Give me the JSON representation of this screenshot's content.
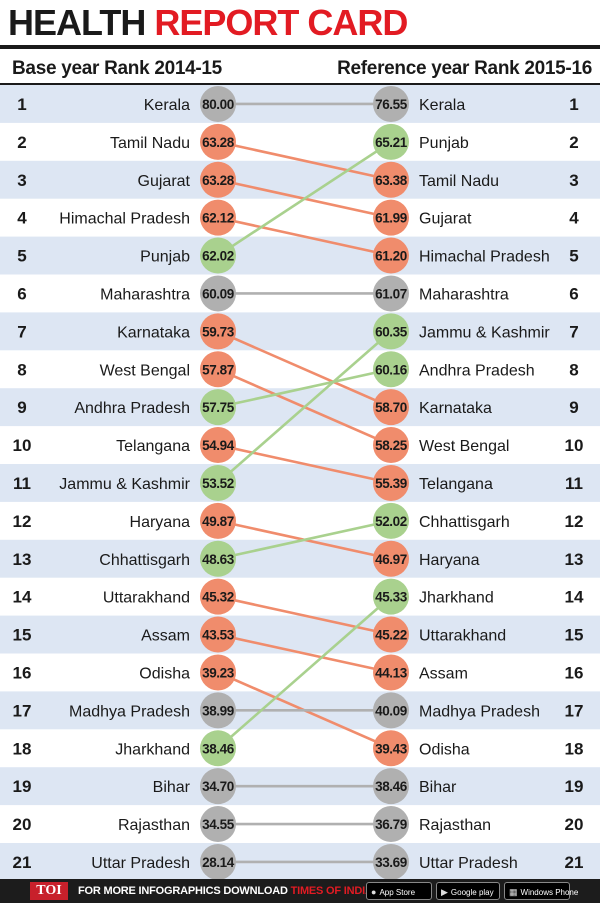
{
  "header": {
    "title_part1": "HEALTH",
    "title_part2": "REPORT CARD",
    "left_heading": "Base year Rank 2014-15",
    "right_heading": "Reference year Rank 2015-16"
  },
  "chart_data": {
    "type": "slope",
    "title": "HEALTH REPORT CARD",
    "left_label": "Base year Rank 2014-15",
    "right_label": "Reference year Rank 2015-16",
    "ranks": [
      1,
      2,
      3,
      4,
      5,
      6,
      7,
      8,
      9,
      10,
      11,
      12,
      13,
      14,
      15,
      16,
      17,
      18,
      19,
      20,
      21
    ],
    "base": [
      {
        "state": "Kerala",
        "score": "80.00"
      },
      {
        "state": "Tamil Nadu",
        "score": "63.28"
      },
      {
        "state": "Gujarat",
        "score": "63.28"
      },
      {
        "state": "Himachal Pradesh",
        "score": "62.12"
      },
      {
        "state": "Punjab",
        "score": "62.02"
      },
      {
        "state": "Maharashtra",
        "score": "60.09"
      },
      {
        "state": "Karnataka",
        "score": "59.73"
      },
      {
        "state": "West Bengal",
        "score": "57.87"
      },
      {
        "state": "Andhra Pradesh",
        "score": "57.75"
      },
      {
        "state": "Telangana",
        "score": "54.94"
      },
      {
        "state": "Jammu & Kashmir",
        "score": "53.52"
      },
      {
        "state": "Haryana",
        "score": "49.87"
      },
      {
        "state": "Chhattisgarh",
        "score": "48.63"
      },
      {
        "state": "Uttarakhand",
        "score": "45.32"
      },
      {
        "state": "Assam",
        "score": "43.53"
      },
      {
        "state": "Odisha",
        "score": "39.23"
      },
      {
        "state": "Madhya Pradesh",
        "score": "38.99"
      },
      {
        "state": "Jharkhand",
        "score": "38.46"
      },
      {
        "state": "Bihar",
        "score": "34.70"
      },
      {
        "state": "Rajasthan",
        "score": "34.55"
      },
      {
        "state": "Uttar Pradesh",
        "score": "28.14"
      }
    ],
    "reference": [
      {
        "state": "Kerala",
        "score": "76.55"
      },
      {
        "state": "Punjab",
        "score": "65.21"
      },
      {
        "state": "Tamil Nadu",
        "score": "63.38"
      },
      {
        "state": "Gujarat",
        "score": "61.99"
      },
      {
        "state": "Himachal Pradesh",
        "score": "61.20"
      },
      {
        "state": "Maharashtra",
        "score": "61.07"
      },
      {
        "state": "Jammu & Kashmir",
        "score": "60.35"
      },
      {
        "state": "Andhra Pradesh",
        "score": "60.16"
      },
      {
        "state": "Karnataka",
        "score": "58.70"
      },
      {
        "state": "West Bengal",
        "score": "58.25"
      },
      {
        "state": "Telangana",
        "score": "55.39"
      },
      {
        "state": "Chhattisgarh",
        "score": "52.02"
      },
      {
        "state": "Haryana",
        "score": "46.97"
      },
      {
        "state": "Jharkhand",
        "score": "45.33"
      },
      {
        "state": "Uttarakhand",
        "score": "45.22"
      },
      {
        "state": "Assam",
        "score": "44.13"
      },
      {
        "state": "Madhya Pradesh",
        "score": "40.09"
      },
      {
        "state": "Odisha",
        "score": "39.43"
      },
      {
        "state": "Bihar",
        "score": "38.46"
      },
      {
        "state": "Rajasthan",
        "score": "36.79"
      },
      {
        "state": "Uttar Pradesh",
        "score": "33.69"
      }
    ],
    "colors": {
      "improved": "#a9d18e",
      "declined": "#f08c6c",
      "unchanged": "#b0b0b0",
      "stripe": "#dde6f3",
      "text": "#1a1a1a"
    }
  },
  "footer": {
    "logo": "TOI",
    "text": "FOR MORE  INFOGRAPHICS DOWNLOAD",
    "brand": "TIMES OF INDIA  APP",
    "app_store": "App Store",
    "google_play": "Google play",
    "windows_phone": "Windows Phone",
    "icons": [
      "apple-icon",
      "google-play-icon",
      "windows-icon"
    ]
  }
}
